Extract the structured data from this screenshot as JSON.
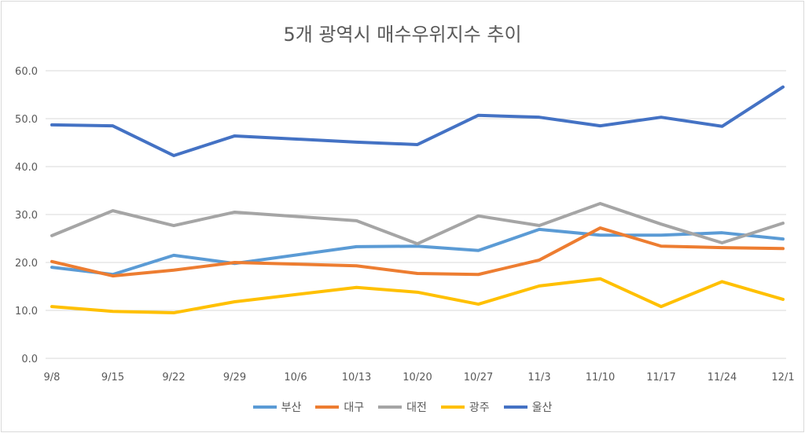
{
  "chart_data": {
    "type": "line",
    "title": "5개 광역시 매수우위지수 추이",
    "xlabel": "",
    "ylabel": "",
    "categories": [
      "9/8",
      "9/15",
      "9/22",
      "9/29",
      "10/6",
      "10/13",
      "10/20",
      "10/27",
      "11/3",
      "11/10",
      "11/17",
      "11/24",
      "12/1"
    ],
    "ylim": [
      0,
      60
    ],
    "yticks": [
      "0.0",
      "10.0",
      "20.0",
      "30.0",
      "40.0",
      "50.0",
      "60.0"
    ],
    "grid": true,
    "legend": "bottom",
    "series": [
      {
        "name": "부산",
        "color": "#5b9bd5",
        "values": [
          19.0,
          17.5,
          21.5,
          19.8,
          null,
          23.3,
          23.4,
          22.5,
          26.9,
          25.7,
          25.7,
          26.2,
          24.9
        ]
      },
      {
        "name": "대구",
        "color": "#ed7d31",
        "values": [
          20.2,
          17.2,
          18.4,
          20.0,
          null,
          19.3,
          17.7,
          17.5,
          20.5,
          27.2,
          23.4,
          23.1,
          22.9
        ]
      },
      {
        "name": "대전",
        "color": "#a5a5a5",
        "values": [
          25.6,
          30.8,
          27.7,
          30.5,
          null,
          28.7,
          23.9,
          29.7,
          27.7,
          32.3,
          28.0,
          24.1,
          28.2
        ]
      },
      {
        "name": "광주",
        "color": "#ffc000",
        "values": [
          10.8,
          9.8,
          9.5,
          11.8,
          null,
          14.8,
          13.8,
          11.3,
          15.1,
          16.6,
          10.8,
          16.0,
          12.3
        ]
      },
      {
        "name": "울산",
        "color": "#4472c4",
        "values": [
          48.7,
          48.5,
          42.3,
          46.4,
          null,
          45.1,
          44.6,
          50.7,
          50.3,
          48.5,
          50.3,
          48.4,
          56.6
        ]
      }
    ]
  }
}
